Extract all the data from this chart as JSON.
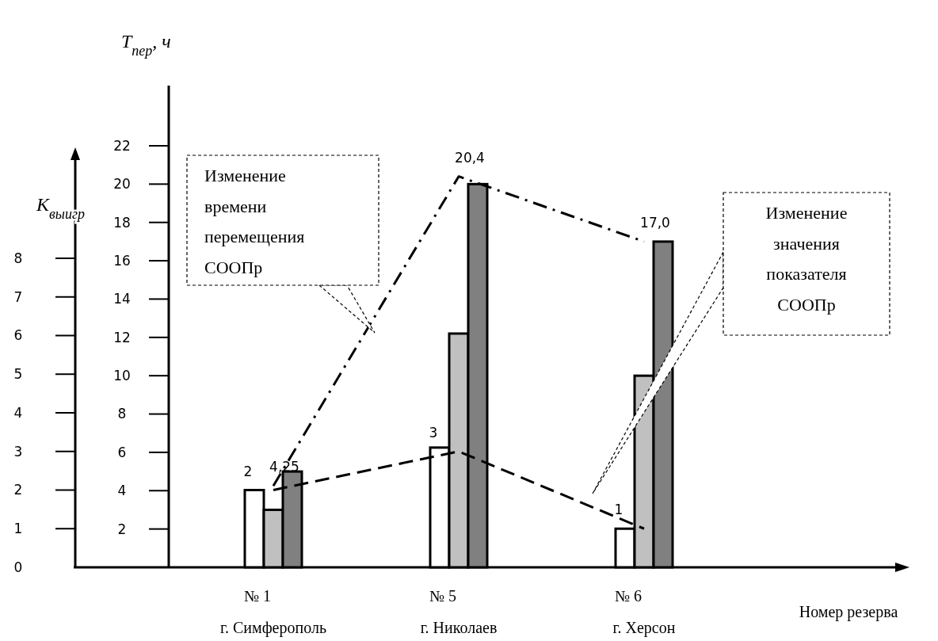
{
  "chart_data": {
    "type": "bar",
    "xlabel": "Номер резерва",
    "ylabel": "K$_{выигр}$",
    "y2label": "T$_{пер}$, ч",
    "categories": [
      "№ 1\nг. Симферополь",
      "№ 5\nг. Николаев",
      "№ 6\nг. Херсон"
    ],
    "ylim": [
      0,
      8
    ],
    "yticks": [
      0,
      1,
      2,
      3,
      4,
      5,
      6,
      7,
      8
    ],
    "y2lim": [
      0,
      22
    ],
    "y2ticks": [
      2,
      4,
      6,
      8,
      10,
      12,
      14,
      16,
      18,
      20,
      22
    ],
    "marker": "none",
    "series": [
      {
        "color": "#ffffff",
        "values": [
          2,
          3.1,
          1
        ]
      },
      {
        "color": "#c0c0c0",
        "axis": "y2",
        "values": [
          3,
          12.2,
          10
        ]
      },
      {
        "color": "#808080",
        "axis": "y2",
        "values": [
          5,
          20,
          17
        ]
      },
      {
        "type": "line",
        "color": "#000000",
        "line_style": "dashed",
        "values": [
          2,
          3,
          1
        ],
        "value_labels": [
          "2",
          "3",
          "1"
        ]
      },
      {
        "type": "line",
        "color": "#000000",
        "line_style": "dashdot",
        "axis": "y2",
        "values": [
          4.25,
          20.4,
          17.0
        ],
        "value_labels": [
          "4,25",
          "20,4",
          "17,0"
        ]
      }
    ],
    "annotations": [
      "Изменение времени перемещения СООПр",
      "Изменение значения показателя СООПр"
    ]
  }
}
